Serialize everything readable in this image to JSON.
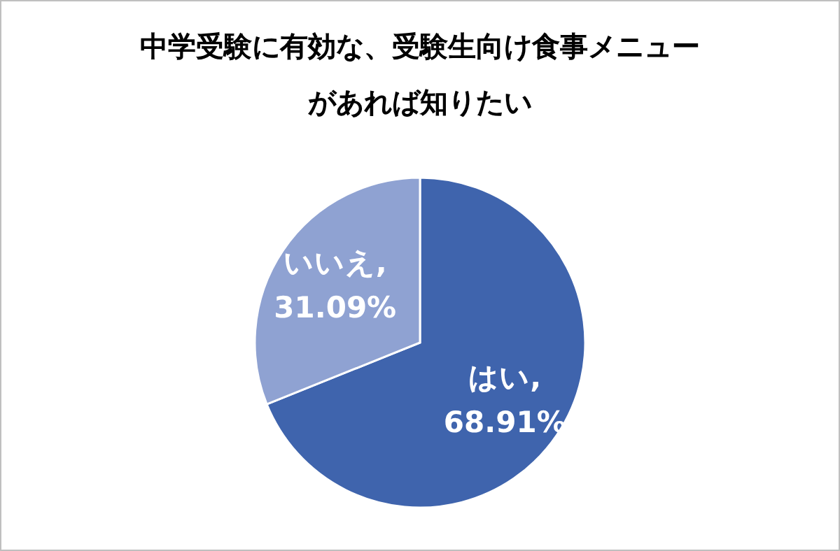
{
  "chart_data": {
    "type": "pie",
    "title": "中学受験に有効な、受験生向け食事メニューがあれば知りたい",
    "categories": [
      "はい",
      "いいえ"
    ],
    "values": [
      68.91,
      31.09
    ],
    "colors": [
      "#3f64ad",
      "#8fa2d2"
    ],
    "value_labels": [
      ",\n68.91%",
      ",\n31.09%"
    ]
  }
}
